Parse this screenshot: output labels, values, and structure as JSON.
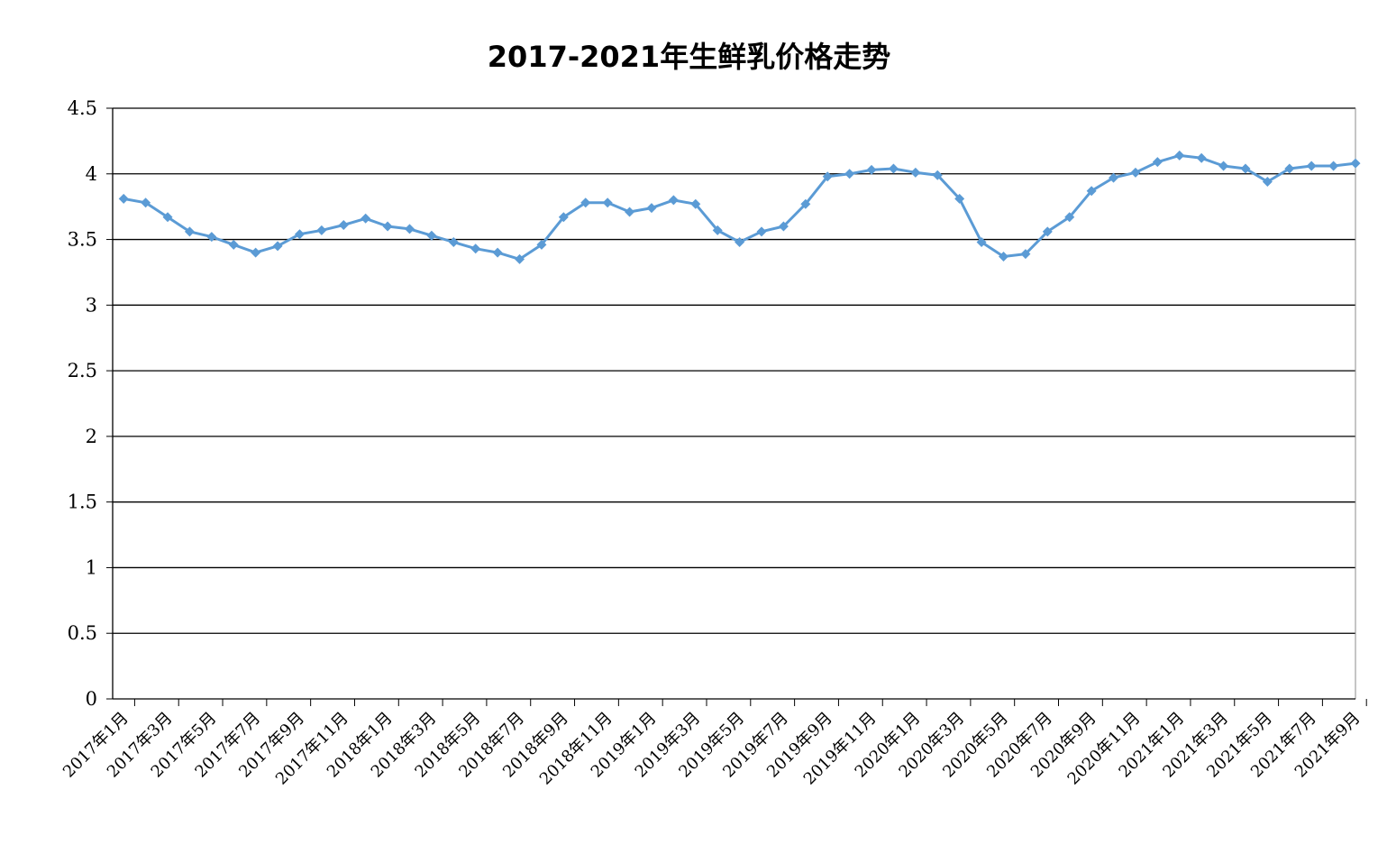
{
  "chart_data": {
    "type": "line",
    "title": "2017-2021年生鲜乳价格走势",
    "xlabel": "",
    "ylabel": "",
    "ylim": [
      0,
      4.5
    ],
    "ytick_labels": [
      "0",
      "0.5",
      "1",
      "1.5",
      "2",
      "2.5",
      "3",
      "3.5",
      "4",
      "4.5"
    ],
    "grid": true,
    "legend": "none",
    "series_color": "#5B9BD5",
    "categories": [
      "2017年1月",
      "2017年2月",
      "2017年3月",
      "2017年4月",
      "2017年5月",
      "2017年6月",
      "2017年7月",
      "2017年8月",
      "2017年9月",
      "2017年10月",
      "2017年11月",
      "2017年12月",
      "2018年1月",
      "2018年2月",
      "2018年3月",
      "2018年4月",
      "2018年5月",
      "2018年6月",
      "2018年7月",
      "2018年8月",
      "2018年9月",
      "2018年10月",
      "2018年11月",
      "2018年12月",
      "2019年1月",
      "2019年2月",
      "2019年3月",
      "2019年4月",
      "2019年5月",
      "2019年6月",
      "2019年7月",
      "2019年8月",
      "2019年9月",
      "2019年10月",
      "2019年11月",
      "2019年12月",
      "2020年1月",
      "2020年2月",
      "2020年3月",
      "2020年4月",
      "2020年5月",
      "2020年6月",
      "2020年7月",
      "2020年8月",
      "2020年9月",
      "2020年10月",
      "2020年11月",
      "2020年12月",
      "2021年1月",
      "2021年2月",
      "2021年3月",
      "2021年4月",
      "2021年5月",
      "2021年6月",
      "2021年7月",
      "2021年8月",
      "2021年9月"
    ],
    "xtick_labels": [
      "2017年1月",
      "2017年3月",
      "2017年5月",
      "2017年7月",
      "2017年9月",
      "2017年11月",
      "2018年1月",
      "2018年3月",
      "2018年5月",
      "2018年7月",
      "2018年9月",
      "2018年11月",
      "2019年1月",
      "2019年3月",
      "2019年5月",
      "2019年7月",
      "2019年9月",
      "2019年11月",
      "2020年1月",
      "2020年3月",
      "2020年5月",
      "2020年7月",
      "2020年9月",
      "2020年11月",
      "2021年1月",
      "2021年3月",
      "2021年5月",
      "2021年7月",
      "2021年9月"
    ],
    "series": [
      {
        "values": [
          3.81,
          3.78,
          3.67,
          3.56,
          3.52,
          3.46,
          3.4,
          3.45,
          3.54,
          3.57,
          3.61,
          3.66,
          3.6,
          3.58,
          3.53,
          3.48,
          3.43,
          3.4,
          3.35,
          3.46,
          3.67,
          3.78,
          3.78,
          3.71,
          3.74,
          3.8,
          3.77,
          3.57,
          3.48,
          3.56,
          3.6,
          3.77,
          3.98,
          4.0,
          4.03,
          4.04,
          4.01,
          3.99,
          3.81,
          3.48,
          3.37,
          3.39,
          3.56,
          3.67,
          3.87,
          3.97,
          4.01,
          4.09,
          4.14,
          4.12,
          4.06,
          4.04,
          3.94,
          4.04,
          4.06,
          4.06,
          4.08
        ]
      }
    ]
  }
}
